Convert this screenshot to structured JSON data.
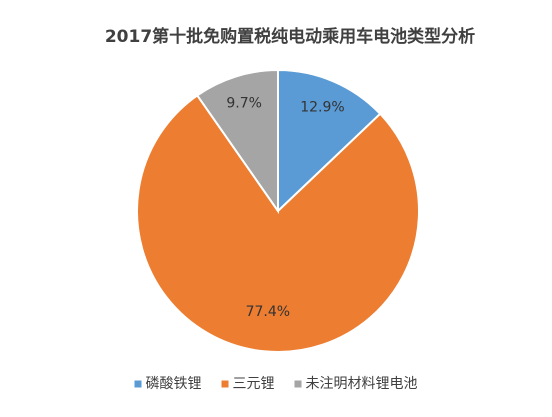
{
  "chart_data": {
    "type": "pie",
    "title": "2017第十批免购置税纯电动乘用车电池类型分析",
    "categories": [
      "磷酸铁锂",
      "三元锂",
      "未注明材料锂电池"
    ],
    "values": [
      12.9,
      77.4,
      9.7
    ],
    "value_labels": [
      "12.9%",
      "77.4%",
      "9.7%"
    ],
    "colors": [
      "#5b9bd5",
      "#ed7d31",
      "#a5a5a5"
    ],
    "legend": "bottom"
  }
}
